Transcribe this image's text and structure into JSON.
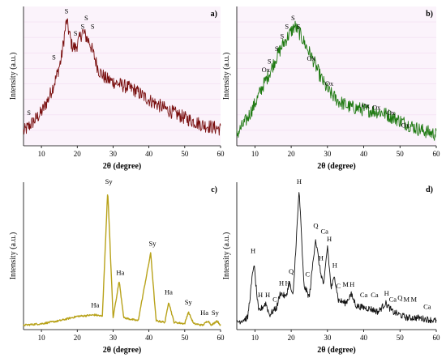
{
  "figure": {
    "panels": [
      {
        "id": "a",
        "label": "a)",
        "xlabel": "2θ (degree)",
        "ylabel": "Intensity (a.u.)",
        "color": "#7a1010",
        "xticks": [
          "10",
          "20",
          "30",
          "40",
          "50",
          "60"
        ],
        "grid_background": true
      },
      {
        "id": "b",
        "label": "b)",
        "xlabel": "2θ (degree)",
        "ylabel": "Intensity (a.u.)",
        "color": "#1f7a12",
        "xticks": [
          "10",
          "20",
          "30",
          "40",
          "50",
          "60"
        ],
        "grid_background": true
      },
      {
        "id": "c",
        "label": "c)",
        "xlabel": "2θ (degree)",
        "ylabel": "Intensity (a.u.)",
        "color": "#b8a21a",
        "xticks": [
          "10",
          "20",
          "30",
          "40",
          "50",
          "60"
        ],
        "grid_background": false
      },
      {
        "id": "d",
        "label": "d)",
        "xlabel": "2θ (degree)",
        "ylabel": "Intensity (a.u.)",
        "color": "#111111",
        "xticks": [
          "10",
          "20",
          "30",
          "40",
          "50",
          "60"
        ],
        "grid_background": false
      }
    ]
  },
  "chart_data": [
    {
      "panel": "a)",
      "type": "line",
      "xlabel": "2θ (degree)",
      "ylabel": "Intensity (a.u.)",
      "xlim": [
        5,
        60
      ],
      "ylim": [
        0,
        100
      ],
      "x": [
        5,
        8,
        10,
        12,
        14,
        15.5,
        17,
        18.5,
        19.5,
        20.5,
        21.5,
        22.5,
        23.5,
        24.5,
        26,
        28,
        30,
        33,
        36,
        40,
        45,
        50,
        55,
        60
      ],
      "y": [
        10,
        18,
        24,
        34,
        48,
        62,
        90,
        72,
        70,
        76,
        82,
        78,
        74,
        66,
        54,
        48,
        46,
        43,
        40,
        33,
        26,
        20,
        15,
        12
      ],
      "annotations": [
        {
          "text": "S",
          "x": 6.5,
          "y": 22
        },
        {
          "text": "S",
          "x": 13.5,
          "y": 62
        },
        {
          "text": "S",
          "x": 17,
          "y": 95
        },
        {
          "text": "S",
          "x": 19.5,
          "y": 79
        },
        {
          "text": "S",
          "x": 21.5,
          "y": 84
        },
        {
          "text": "S",
          "x": 22.5,
          "y": 90
        },
        {
          "text": "S",
          "x": 24.3,
          "y": 84
        }
      ]
    },
    {
      "panel": "b)",
      "type": "line",
      "xlabel": "2θ (degree)",
      "ylabel": "Intensity (a.u.)",
      "xlim": [
        5,
        60
      ],
      "ylim": [
        0,
        100
      ],
      "x": [
        5,
        8,
        10,
        12,
        14,
        16,
        18,
        19.5,
        21,
        22.5,
        24,
        26,
        28,
        30,
        33,
        36,
        40,
        45,
        50,
        55,
        60
      ],
      "y": [
        8,
        20,
        30,
        42,
        52,
        64,
        74,
        80,
        86,
        80,
        72,
        62,
        50,
        40,
        32,
        28,
        26,
        24,
        18,
        12,
        8
      ],
      "annotations": [
        {
          "text": "Ox",
          "x": 13,
          "y": 53
        },
        {
          "text": "S",
          "x": 14,
          "y": 59
        },
        {
          "text": "S",
          "x": 16,
          "y": 68
        },
        {
          "text": "S",
          "x": 17.5,
          "y": 77
        },
        {
          "text": "S",
          "x": 18.8,
          "y": 84
        },
        {
          "text": "S",
          "x": 20.5,
          "y": 90
        },
        {
          "text": "S",
          "x": 22,
          "y": 84
        },
        {
          "text": "Ox",
          "x": 25.5,
          "y": 61
        },
        {
          "text": "Ox",
          "x": 30.5,
          "y": 43
        },
        {
          "text": "Ox",
          "x": 40.5,
          "y": 27
        },
        {
          "text": "Ox",
          "x": 43.5,
          "y": 26
        },
        {
          "text": "Ox",
          "x": 47.5,
          "y": 22
        },
        {
          "text": "Ox",
          "x": 51.5,
          "y": 13
        }
      ]
    },
    {
      "panel": "c)",
      "type": "line",
      "xlabel": "2θ (degree)",
      "ylabel": "Intensity (a.u.)",
      "xlim": [
        5,
        60
      ],
      "ylim": [
        0,
        100
      ],
      "x": [
        5,
        10,
        15,
        20,
        25,
        27,
        28.5,
        30,
        31.7,
        33,
        37,
        40.5,
        42,
        44.5,
        45.5,
        47,
        50,
        51,
        52.5,
        55,
        56.5,
        57.5,
        59,
        60
      ],
      "y": [
        3,
        4,
        6,
        9,
        10,
        9,
        95,
        8,
        33,
        8,
        6,
        52,
        6,
        5,
        19,
        5,
        4,
        12,
        4,
        3,
        6,
        3,
        6,
        3
      ],
      "annotations": [
        {
          "text": "Ha",
          "x": 25,
          "y": 15
        },
        {
          "text": "Sy",
          "x": 28.8,
          "y": 99
        },
        {
          "text": "Ha",
          "x": 32,
          "y": 37
        },
        {
          "text": "Sy",
          "x": 41,
          "y": 57
        },
        {
          "text": "Ha",
          "x": 45.5,
          "y": 24
        },
        {
          "text": "Sy",
          "x": 51,
          "y": 17
        },
        {
          "text": "Ha",
          "x": 55.5,
          "y": 10
        },
        {
          "text": "Sy",
          "x": 58.5,
          "y": 10
        }
      ]
    },
    {
      "panel": "d)",
      "type": "line",
      "xlabel": "2θ (degree)",
      "ylabel": "Intensity (a.u.)",
      "xlim": [
        5,
        60
      ],
      "ylim": [
        0,
        100
      ],
      "x": [
        5,
        8,
        9.7,
        11,
        13,
        14,
        16,
        17,
        18.5,
        19.5,
        20.5,
        22.2,
        23.5,
        25,
        26.7,
        28,
        29,
        30,
        31,
        32,
        33,
        35,
        36.5,
        38,
        40,
        42,
        44,
        46,
        48,
        50,
        52,
        55,
        60
      ],
      "y": [
        5,
        8,
        45,
        12,
        18,
        10,
        15,
        25,
        22,
        32,
        22,
        95,
        30,
        22,
        62,
        40,
        30,
        57,
        28,
        36,
        20,
        18,
        24,
        16,
        15,
        14,
        12,
        18,
        12,
        10,
        8,
        8,
        6
      ],
      "annotations": [
        {
          "text": "H",
          "x": 9.5,
          "y": 52
        },
        {
          "text": "H",
          "x": 11.5,
          "y": 22
        },
        {
          "text": "H",
          "x": 13.5,
          "y": 22
        },
        {
          "text": "C",
          "x": 15.5,
          "y": 19
        },
        {
          "text": "H",
          "x": 17.3,
          "y": 30
        },
        {
          "text": "H",
          "x": 19,
          "y": 30
        },
        {
          "text": "Q",
          "x": 20,
          "y": 38
        },
        {
          "text": "H",
          "x": 22.2,
          "y": 99
        },
        {
          "text": "C",
          "x": 24.5,
          "y": 36
        },
        {
          "text": "Q",
          "x": 26.8,
          "y": 69
        },
        {
          "text": "H",
          "x": 28.2,
          "y": 47
        },
        {
          "text": "Ca",
          "x": 29.2,
          "y": 65
        },
        {
          "text": "H",
          "x": 30.5,
          "y": 60
        },
        {
          "text": "H",
          "x": 32,
          "y": 42
        },
        {
          "text": "C",
          "x": 33,
          "y": 28
        },
        {
          "text": "M",
          "x": 35,
          "y": 29
        },
        {
          "text": "H",
          "x": 36.8,
          "y": 29
        },
        {
          "text": "Ca",
          "x": 40,
          "y": 22
        },
        {
          "text": "Ca",
          "x": 43,
          "y": 22
        },
        {
          "text": "H",
          "x": 46.3,
          "y": 23
        },
        {
          "text": "Ca",
          "x": 48,
          "y": 19
        },
        {
          "text": "Q",
          "x": 50,
          "y": 20
        },
        {
          "text": "M",
          "x": 51.8,
          "y": 19
        },
        {
          "text": "M",
          "x": 53.8,
          "y": 19
        },
        {
          "text": "Ca",
          "x": 57.5,
          "y": 14
        }
      ]
    }
  ]
}
